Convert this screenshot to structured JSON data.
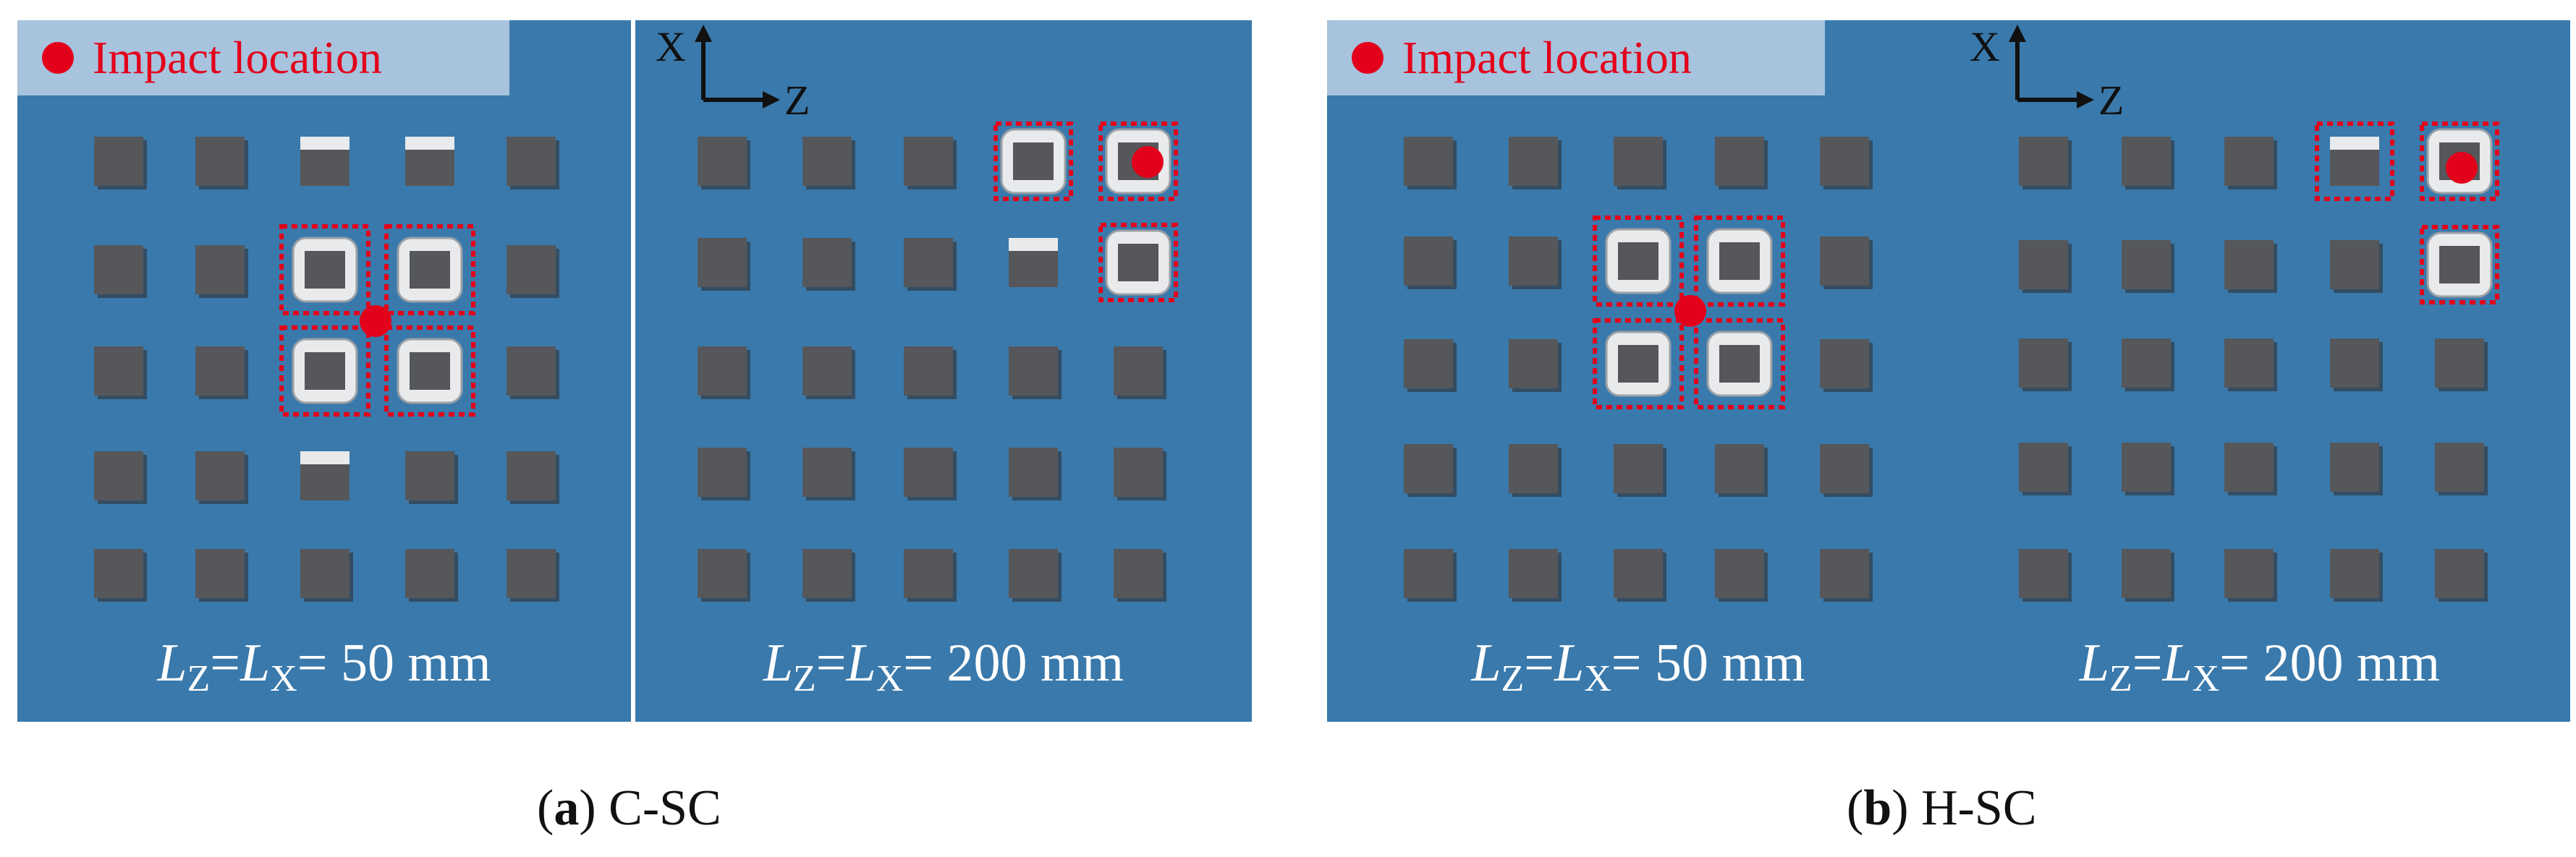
{
  "legend": {
    "label": "Impact location"
  },
  "axis_labels": {
    "x": "X",
    "z": "Z"
  },
  "formula": {
    "l_symbol": "L",
    "z_sub": "Z",
    "x_sub": "X",
    "equals": "=",
    "equals_space": "= "
  },
  "panels": [
    {
      "spacing_text": "50 mm"
    },
    {
      "spacing_text": "200 mm"
    },
    {
      "spacing_text": "50 mm"
    },
    {
      "spacing_text": "200 mm"
    }
  ],
  "captions": [
    {
      "letter": "a",
      "label": "C-SC"
    },
    {
      "letter": "b",
      "label": "H-SC"
    }
  ],
  "colors": {
    "panel": "#3a79ab",
    "block": "#56575a",
    "damaged": "#e8eaec",
    "highlight": "#e3001b"
  }
}
